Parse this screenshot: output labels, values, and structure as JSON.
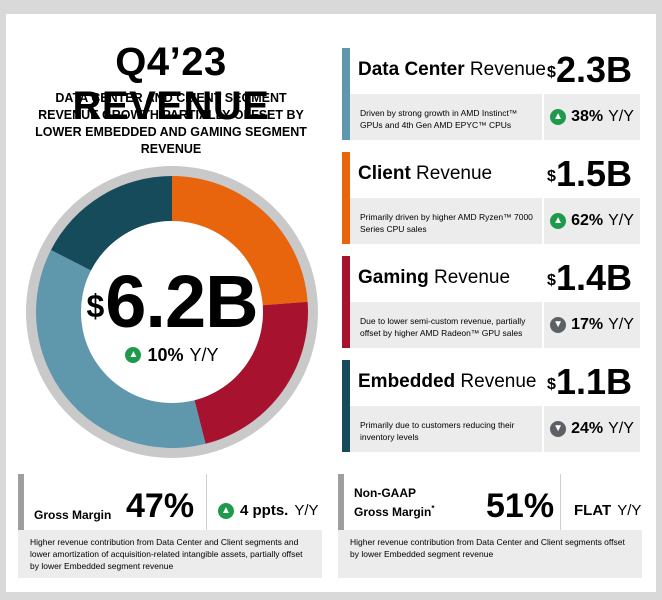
{
  "header": {
    "title": "Q4’23 REVENUE",
    "subtitle": "DATA CENTER AND CLIENT SEGMENT REVENUE GROWTH PARTIALLY OFFSET BY LOWER EMBEDDED AND GAMING SEGMENT REVENUE"
  },
  "total": {
    "currency": "$",
    "amount": "6.2B",
    "change": "10%",
    "unit": "Y/Y",
    "direction": "up"
  },
  "donut": {
    "segments": [
      {
        "name": "Client",
        "value": 1.5,
        "color": "#e8650e"
      },
      {
        "name": "Gaming",
        "value": 1.4,
        "color": "#a7122e"
      },
      {
        "name": "Data Center",
        "value": 2.3,
        "color": "#5f98ad"
      },
      {
        "name": "Embedded",
        "value": 1.1,
        "color": "#164b5b"
      }
    ],
    "ring_color": "#c9c9c9"
  },
  "segments": [
    {
      "bold": "Data Center",
      "rest": " Revenue",
      "currency": "$",
      "value": "2.3B",
      "desc": "Driven by strong growth in AMD Instinct™ GPUs and 4th Gen AMD EPYC™ CPUs",
      "change": "38%",
      "unit": "Y/Y",
      "direction": "up",
      "arrow": "▲",
      "accent": "#5f98ad"
    },
    {
      "bold": "Client",
      "rest": " Revenue",
      "currency": "$",
      "value": "1.5B",
      "desc": "Primarily driven by higher AMD Ryzen™ 7000 Series CPU sales",
      "change": "62%",
      "unit": "Y/Y",
      "direction": "up",
      "arrow": "▲",
      "accent": "#e8650e"
    },
    {
      "bold": "Gaming",
      "rest": " Revenue",
      "currency": "$",
      "value": "1.4B",
      "desc": "Due to lower semi-custom revenue, partially offset by higher AMD Radeon™ GPU sales",
      "change": "17%",
      "unit": "Y/Y",
      "direction": "down",
      "arrow": "▼",
      "accent": "#a7122e"
    },
    {
      "bold": "Embedded",
      "rest": " Revenue",
      "currency": "$",
      "value": "1.1B",
      "desc": "Primarily due to customers reducing their inventory levels",
      "change": "24%",
      "unit": "Y/Y",
      "direction": "down",
      "arrow": "▼",
      "accent": "#164b5b"
    }
  ],
  "gross_margin": {
    "label": "Gross Margin",
    "value": "47%",
    "change": "4 ppts.",
    "unit": "Y/Y",
    "arrow": "▲",
    "note": "Higher revenue contribution from Data Center and Client segments and lower amortization of acquisition-related intangible assets, partially offset by lower Embedded segment revenue"
  },
  "non_gaap_margin": {
    "label_line1": "Non-GAAP",
    "label_line2": "Gross Margin",
    "footnote": "*",
    "value": "51%",
    "change": "FLAT",
    "unit": "Y/Y",
    "note": "Higher revenue contribution from Data Center and Client segments offset by lower Embedded segment revenue"
  },
  "icons": {
    "up": "arrow-up-circle-icon",
    "down": "arrow-down-circle-icon"
  }
}
